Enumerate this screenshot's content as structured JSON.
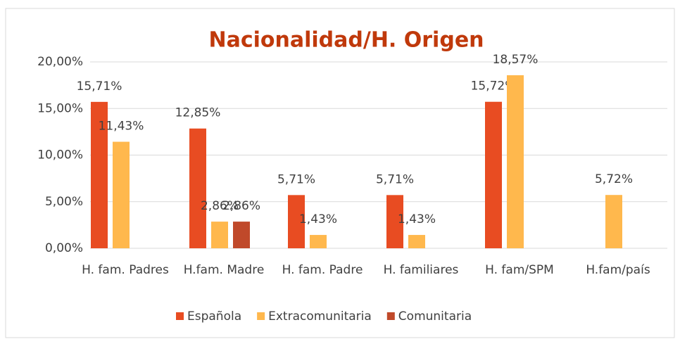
{
  "chart_data": {
    "type": "bar",
    "title": "Nacionalidad/H. Origen",
    "categories": [
      "H. fam. Padres",
      "H.fam. Madre",
      "H. fam. Padre",
      "H. familiares",
      "H. fam/SPM",
      "H.fam/país"
    ],
    "series": [
      {
        "name": "Española",
        "color": "#e84c22",
        "values": [
          15.71,
          12.85,
          5.71,
          5.71,
          15.72,
          null
        ],
        "value_labels": [
          "15,71%",
          "12,85%",
          "5,71%",
          "5,71%",
          "15,72%",
          null
        ]
      },
      {
        "name": "Extracomunitaria",
        "color": "#ffb84d",
        "values": [
          11.43,
          2.86,
          1.43,
          1.43,
          18.57,
          5.72
        ],
        "value_labels": [
          "11,43%",
          "2,86%",
          "1,43%",
          "1,43%",
          "18,57%",
          "5,72%"
        ]
      },
      {
        "name": "Comunitaria",
        "color": "#c0492a",
        "values": [
          null,
          2.86,
          null,
          null,
          null,
          null
        ],
        "value_labels": [
          null,
          "2,86%",
          null,
          null,
          null,
          null
        ]
      }
    ],
    "ylim": [
      0,
      20
    ],
    "yticks": [
      {
        "value": 0,
        "label": "0,00%"
      },
      {
        "value": 5,
        "label": "5,00%"
      },
      {
        "value": 10,
        "label": "10,00%"
      },
      {
        "value": 15,
        "label": "15,00%"
      },
      {
        "value": 20,
        "label": "20,00%"
      }
    ],
    "grid": true,
    "legend": "bottom"
  }
}
